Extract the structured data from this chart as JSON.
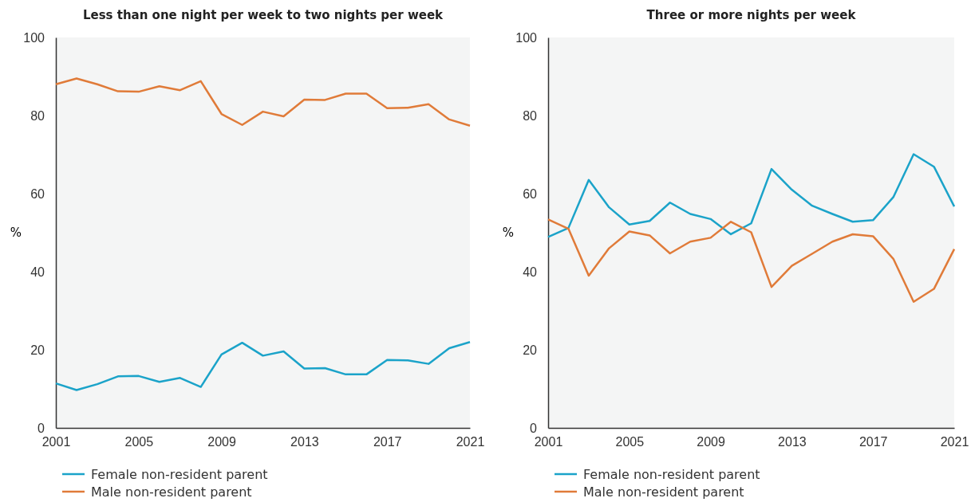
{
  "chart_data": [
    {
      "type": "line",
      "title": "Less than one night per week to two nights per week",
      "ylabel": "%",
      "x": [
        2001,
        2002,
        2003,
        2004,
        2005,
        2006,
        2007,
        2008,
        2009,
        2010,
        2011,
        2012,
        2013,
        2014,
        2015,
        2016,
        2017,
        2018,
        2019,
        2020,
        2021
      ],
      "xlim": [
        2001,
        2021
      ],
      "xticks": [
        2001,
        2005,
        2009,
        2013,
        2017,
        2021
      ],
      "ylim": [
        0,
        100
      ],
      "yticks": [
        0,
        20,
        40,
        60,
        80,
        100
      ],
      "legend": "bottom left",
      "series": [
        {
          "name": "Female non-resident parent",
          "color": "#1ba3c9",
          "values": [
            11.4,
            9.7,
            11.2,
            13.2,
            13.3,
            11.8,
            12.8,
            10.5,
            18.8,
            21.8,
            18.5,
            19.6,
            15.2,
            15.3,
            13.7,
            13.7,
            17.4,
            17.3,
            16.4,
            20.4,
            22.0
          ]
        },
        {
          "name": "Male non-resident parent",
          "color": "#e07b39",
          "values": [
            88.0,
            89.5,
            88.0,
            86.2,
            86.1,
            87.5,
            86.5,
            88.8,
            80.4,
            77.6,
            81.0,
            79.8,
            84.1,
            84.0,
            85.6,
            85.6,
            81.9,
            82.0,
            82.9,
            79.0,
            77.4
          ]
        }
      ]
    },
    {
      "type": "line",
      "title": "Three or more nights per week",
      "ylabel": "%",
      "x": [
        2001,
        2002,
        2003,
        2004,
        2005,
        2006,
        2007,
        2008,
        2009,
        2010,
        2011,
        2012,
        2013,
        2014,
        2015,
        2016,
        2017,
        2018,
        2019,
        2020,
        2021
      ],
      "xlim": [
        2001,
        2021
      ],
      "xticks": [
        2001,
        2005,
        2009,
        2013,
        2017,
        2021
      ],
      "ylim": [
        0,
        100
      ],
      "yticks": [
        0,
        20,
        40,
        60,
        80,
        100
      ],
      "legend": "bottom left",
      "series": [
        {
          "name": "Female non-resident parent",
          "color": "#1ba3c9",
          "values": [
            48.9,
            51.2,
            63.5,
            56.5,
            52.1,
            53.0,
            57.7,
            54.8,
            53.5,
            49.6,
            52.4,
            66.3,
            61.0,
            56.9,
            54.8,
            52.8,
            53.2,
            59.1,
            70.1,
            66.9,
            56.7
          ]
        },
        {
          "name": "Male non-resident parent",
          "color": "#e07b39",
          "values": [
            53.4,
            51.0,
            39.0,
            46.0,
            50.3,
            49.3,
            44.7,
            47.7,
            48.7,
            52.8,
            50.1,
            36.1,
            41.5,
            44.6,
            47.7,
            49.6,
            49.1,
            43.3,
            32.3,
            35.6,
            45.8
          ]
        }
      ]
    }
  ]
}
